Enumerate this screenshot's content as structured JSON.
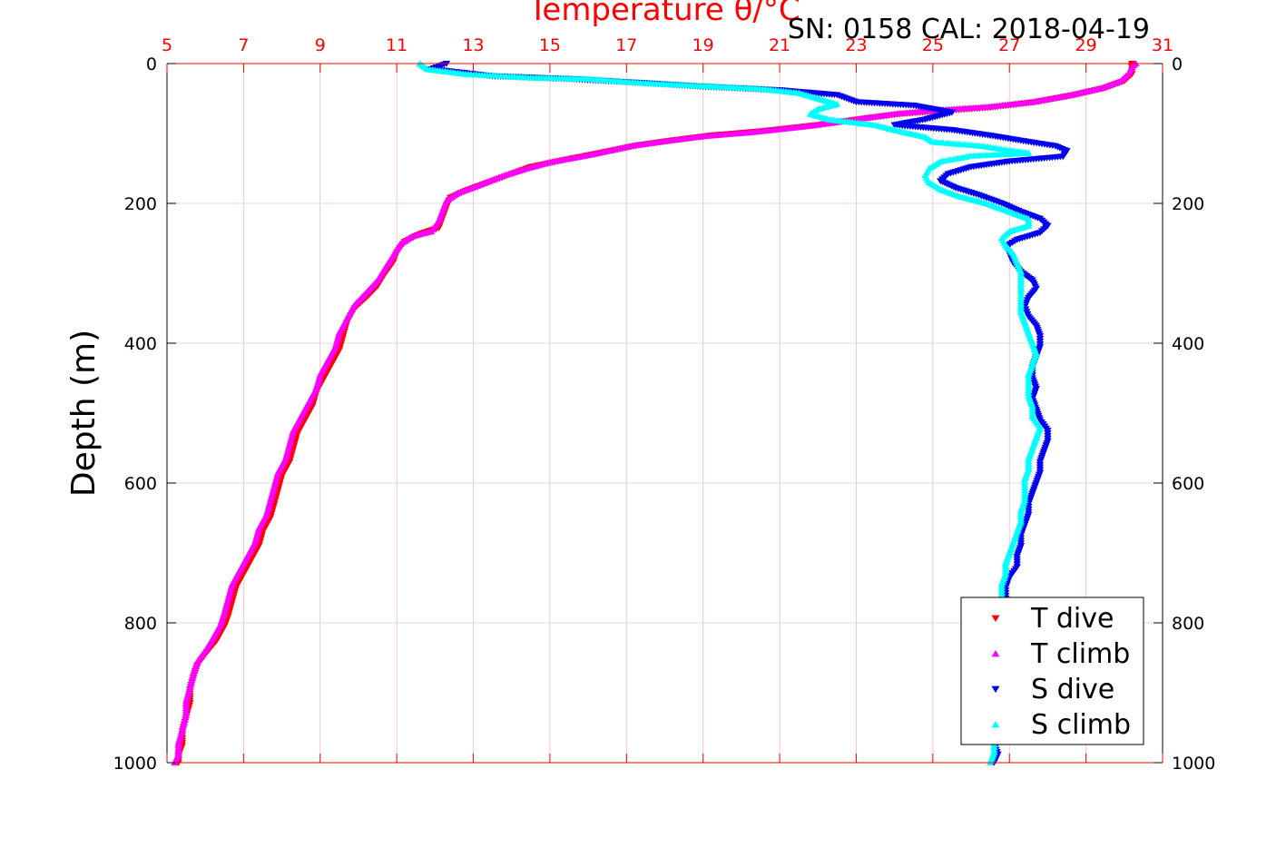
{
  "chart_data": {
    "type": "scatter",
    "title": "SN: 0158  CAL: 2018-04-19",
    "top_axis_label": "Temperature θ/°C",
    "ylabel": "Depth (m)",
    "xlim": [
      5,
      31
    ],
    "ylim": [
      0,
      1000
    ],
    "y_reversed": true,
    "x_ticks": [
      5,
      7,
      9,
      11,
      13,
      15,
      17,
      19,
      21,
      23,
      25,
      27,
      29,
      31
    ],
    "y_ticks": [
      0,
      200,
      400,
      600,
      800,
      1000
    ],
    "grid": true,
    "legend_position": "bottom-right",
    "colors": {
      "temperature_axis": "#ff0000",
      "t_dive": "#ff0000",
      "t_climb": "#ff00ff",
      "s_dive": "#0000ee",
      "s_climb": "#00ffff"
    },
    "series": [
      {
        "name": "T dive",
        "marker": "triangle-down",
        "color": "#ff0000",
        "points": [
          [
            30.2,
            0
          ],
          [
            30.2,
            5
          ],
          [
            30.2,
            15
          ],
          [
            30.0,
            25
          ],
          [
            29.5,
            35
          ],
          [
            28.7,
            45
          ],
          [
            27.7,
            55
          ],
          [
            26.5,
            63
          ],
          [
            25.2,
            68
          ],
          [
            24.2,
            72
          ],
          [
            23.3,
            78
          ],
          [
            22.0,
            88
          ],
          [
            20.5,
            97
          ],
          [
            19.2,
            103
          ],
          [
            18.2,
            110
          ],
          [
            17.3,
            117
          ],
          [
            16.3,
            128
          ],
          [
            15.2,
            140
          ],
          [
            14.5,
            148
          ],
          [
            14.0,
            158
          ],
          [
            13.3,
            172
          ],
          [
            12.8,
            182
          ],
          [
            12.4,
            192
          ],
          [
            12.3,
            205
          ],
          [
            12.2,
            220
          ],
          [
            12.1,
            235
          ],
          [
            11.6,
            244
          ],
          [
            11.2,
            255
          ],
          [
            11.0,
            270
          ],
          [
            10.9,
            285
          ],
          [
            10.7,
            300
          ],
          [
            10.5,
            318
          ],
          [
            10.2,
            335
          ],
          [
            9.9,
            350
          ],
          [
            9.7,
            370
          ],
          [
            9.6,
            390
          ],
          [
            9.5,
            410
          ],
          [
            9.3,
            430
          ],
          [
            9.1,
            450
          ],
          [
            8.9,
            470
          ],
          [
            8.8,
            490
          ],
          [
            8.6,
            510
          ],
          [
            8.4,
            530
          ],
          [
            8.3,
            550
          ],
          [
            8.2,
            570
          ],
          [
            8.0,
            590
          ],
          [
            7.9,
            610
          ],
          [
            7.8,
            630
          ],
          [
            7.7,
            650
          ],
          [
            7.5,
            670
          ],
          [
            7.4,
            690
          ],
          [
            7.2,
            710
          ],
          [
            7.0,
            730
          ],
          [
            6.8,
            750
          ],
          [
            6.7,
            770
          ],
          [
            6.6,
            790
          ],
          [
            6.5,
            805
          ],
          [
            6.3,
            825
          ],
          [
            6.0,
            845
          ],
          [
            5.8,
            860
          ],
          [
            5.7,
            875
          ],
          [
            5.6,
            895
          ],
          [
            5.6,
            915
          ],
          [
            5.5,
            935
          ],
          [
            5.4,
            955
          ],
          [
            5.4,
            975
          ],
          [
            5.3,
            990
          ],
          [
            5.3,
            1000
          ]
        ]
      },
      {
        "name": "T climb",
        "marker": "triangle-up",
        "color": "#ff00ff",
        "points": [
          [
            30.3,
            0
          ],
          [
            30.2,
            5
          ],
          [
            30.1,
            15
          ],
          [
            29.9,
            25
          ],
          [
            29.4,
            35
          ],
          [
            28.6,
            45
          ],
          [
            27.6,
            55
          ],
          [
            26.4,
            62
          ],
          [
            25.0,
            67
          ],
          [
            24.0,
            72
          ],
          [
            23.1,
            79
          ],
          [
            21.8,
            89
          ],
          [
            20.3,
            98
          ],
          [
            19.0,
            104
          ],
          [
            18.0,
            111
          ],
          [
            17.1,
            118
          ],
          [
            16.1,
            130
          ],
          [
            15.0,
            141
          ],
          [
            14.4,
            150
          ],
          [
            13.8,
            160
          ],
          [
            13.1,
            175
          ],
          [
            12.6,
            185
          ],
          [
            12.3,
            196
          ],
          [
            12.2,
            210
          ],
          [
            12.1,
            225
          ],
          [
            11.9,
            240
          ],
          [
            11.4,
            247
          ],
          [
            11.1,
            258
          ],
          [
            10.9,
            275
          ],
          [
            10.7,
            292
          ],
          [
            10.5,
            310
          ],
          [
            10.2,
            328
          ],
          [
            9.9,
            345
          ],
          [
            9.7,
            365
          ],
          [
            9.5,
            385
          ],
          [
            9.4,
            405
          ],
          [
            9.2,
            425
          ],
          [
            9.0,
            445
          ],
          [
            8.9,
            465
          ],
          [
            8.7,
            485
          ],
          [
            8.5,
            505
          ],
          [
            8.3,
            525
          ],
          [
            8.2,
            545
          ],
          [
            8.1,
            565
          ],
          [
            7.9,
            585
          ],
          [
            7.8,
            605
          ],
          [
            7.7,
            625
          ],
          [
            7.6,
            645
          ],
          [
            7.4,
            665
          ],
          [
            7.3,
            685
          ],
          [
            7.1,
            705
          ],
          [
            6.9,
            725
          ],
          [
            6.7,
            745
          ],
          [
            6.6,
            765
          ],
          [
            6.5,
            785
          ],
          [
            6.4,
            802
          ],
          [
            6.2,
            822
          ],
          [
            6.0,
            840
          ],
          [
            5.8,
            855
          ],
          [
            5.7,
            872
          ],
          [
            5.6,
            892
          ],
          [
            5.5,
            912
          ],
          [
            5.5,
            932
          ],
          [
            5.4,
            952
          ],
          [
            5.3,
            972
          ],
          [
            5.3,
            988
          ],
          [
            5.2,
            1000
          ]
        ]
      },
      {
        "name": "S dive",
        "marker": "triangle-down",
        "color": "#0000ee",
        "points": [
          [
            12.3,
            0
          ],
          [
            11.9,
            8
          ],
          [
            13.5,
            18
          ],
          [
            15.5,
            22
          ],
          [
            17.5,
            28
          ],
          [
            19.0,
            33
          ],
          [
            21.0,
            38
          ],
          [
            22.5,
            45
          ],
          [
            23.0,
            55
          ],
          [
            24.5,
            60
          ],
          [
            25.5,
            70
          ],
          [
            24.8,
            80
          ],
          [
            24.0,
            88
          ],
          [
            25.5,
            95
          ],
          [
            26.5,
            103
          ],
          [
            27.5,
            112
          ],
          [
            28.2,
            118
          ],
          [
            28.5,
            125
          ],
          [
            28.4,
            133
          ],
          [
            27.0,
            140
          ],
          [
            26.0,
            148
          ],
          [
            25.4,
            158
          ],
          [
            25.2,
            168
          ],
          [
            25.6,
            178
          ],
          [
            26.2,
            188
          ],
          [
            26.8,
            200
          ],
          [
            27.3,
            212
          ],
          [
            27.8,
            222
          ],
          [
            28.0,
            232
          ],
          [
            27.8,
            242
          ],
          [
            27.2,
            252
          ],
          [
            26.9,
            262
          ],
          [
            27.0,
            272
          ],
          [
            27.1,
            285
          ],
          [
            27.3,
            298
          ],
          [
            27.6,
            310
          ],
          [
            27.7,
            322
          ],
          [
            27.5,
            335
          ],
          [
            27.4,
            348
          ],
          [
            27.5,
            362
          ],
          [
            27.7,
            375
          ],
          [
            27.8,
            390
          ],
          [
            27.8,
            405
          ],
          [
            27.7,
            420
          ],
          [
            27.6,
            435
          ],
          [
            27.6,
            450
          ],
          [
            27.7,
            465
          ],
          [
            27.6,
            480
          ],
          [
            27.7,
            495
          ],
          [
            27.8,
            510
          ],
          [
            28.0,
            525
          ],
          [
            28.0,
            540
          ],
          [
            27.9,
            555
          ],
          [
            27.8,
            570
          ],
          [
            27.8,
            585
          ],
          [
            27.7,
            600
          ],
          [
            27.6,
            615
          ],
          [
            27.5,
            630
          ],
          [
            27.5,
            645
          ],
          [
            27.4,
            660
          ],
          [
            27.3,
            675
          ],
          [
            27.3,
            690
          ],
          [
            27.2,
            705
          ],
          [
            27.2,
            720
          ],
          [
            27.0,
            735
          ],
          [
            26.9,
            750
          ],
          [
            26.9,
            765
          ],
          [
            26.8,
            780
          ],
          [
            26.8,
            795
          ],
          [
            26.8,
            810
          ],
          [
            26.8,
            825
          ],
          [
            26.7,
            840
          ],
          [
            26.7,
            855
          ],
          [
            26.7,
            870
          ],
          [
            26.7,
            885
          ],
          [
            26.7,
            900
          ],
          [
            26.7,
            915
          ],
          [
            26.6,
            930
          ],
          [
            26.6,
            945
          ],
          [
            26.6,
            960
          ],
          [
            26.6,
            975
          ],
          [
            26.7,
            988
          ],
          [
            26.6,
            1000
          ]
        ]
      },
      {
        "name": "S climb",
        "marker": "triangle-up",
        "color": "#00ffff",
        "points": [
          [
            11.6,
            0
          ],
          [
            11.8,
            8
          ],
          [
            12.8,
            15
          ],
          [
            14.5,
            20
          ],
          [
            16.0,
            22
          ],
          [
            17.5,
            28
          ],
          [
            19.0,
            32
          ],
          [
            20.5,
            36
          ],
          [
            21.5,
            42
          ],
          [
            22.0,
            50
          ],
          [
            22.5,
            58
          ],
          [
            22.0,
            65
          ],
          [
            21.8,
            72
          ],
          [
            22.3,
            80
          ],
          [
            23.5,
            88
          ],
          [
            24.0,
            95
          ],
          [
            24.8,
            105
          ],
          [
            25.0,
            112
          ],
          [
            26.3,
            118
          ],
          [
            27.0,
            124
          ],
          [
            27.5,
            128
          ],
          [
            26.0,
            132
          ],
          [
            25.2,
            140
          ],
          [
            24.9,
            150
          ],
          [
            24.8,
            160
          ],
          [
            24.9,
            170
          ],
          [
            25.2,
            180
          ],
          [
            25.7,
            190
          ],
          [
            26.4,
            200
          ],
          [
            27.0,
            212
          ],
          [
            27.5,
            222
          ],
          [
            27.5,
            232
          ],
          [
            27.0,
            240
          ],
          [
            26.8,
            250
          ],
          [
            26.9,
            260
          ],
          [
            27.1,
            272
          ],
          [
            27.2,
            285
          ],
          [
            27.3,
            298
          ],
          [
            27.3,
            312
          ],
          [
            27.3,
            325
          ],
          [
            27.3,
            340
          ],
          [
            27.3,
            355
          ],
          [
            27.4,
            370
          ],
          [
            27.5,
            385
          ],
          [
            27.6,
            400
          ],
          [
            27.7,
            415
          ],
          [
            27.6,
            430
          ],
          [
            27.5,
            445
          ],
          [
            27.5,
            460
          ],
          [
            27.5,
            475
          ],
          [
            27.6,
            490
          ],
          [
            27.6,
            505
          ],
          [
            27.8,
            520
          ],
          [
            27.7,
            535
          ],
          [
            27.6,
            550
          ],
          [
            27.5,
            565
          ],
          [
            27.5,
            580
          ],
          [
            27.4,
            595
          ],
          [
            27.4,
            610
          ],
          [
            27.4,
            625
          ],
          [
            27.3,
            640
          ],
          [
            27.3,
            655
          ],
          [
            27.2,
            670
          ],
          [
            27.1,
            685
          ],
          [
            27.0,
            700
          ],
          [
            26.9,
            715
          ],
          [
            26.9,
            730
          ],
          [
            26.8,
            745
          ],
          [
            26.8,
            760
          ],
          [
            26.8,
            775
          ],
          [
            26.8,
            790
          ],
          [
            26.8,
            805
          ],
          [
            26.8,
            820
          ],
          [
            26.7,
            835
          ],
          [
            26.7,
            850
          ],
          [
            26.7,
            865
          ],
          [
            26.7,
            880
          ],
          [
            26.7,
            895
          ],
          [
            26.7,
            910
          ],
          [
            26.6,
            925
          ],
          [
            26.6,
            940
          ],
          [
            26.6,
            955
          ],
          [
            26.6,
            970
          ],
          [
            26.6,
            985
          ],
          [
            26.5,
            1000
          ]
        ]
      }
    ]
  }
}
